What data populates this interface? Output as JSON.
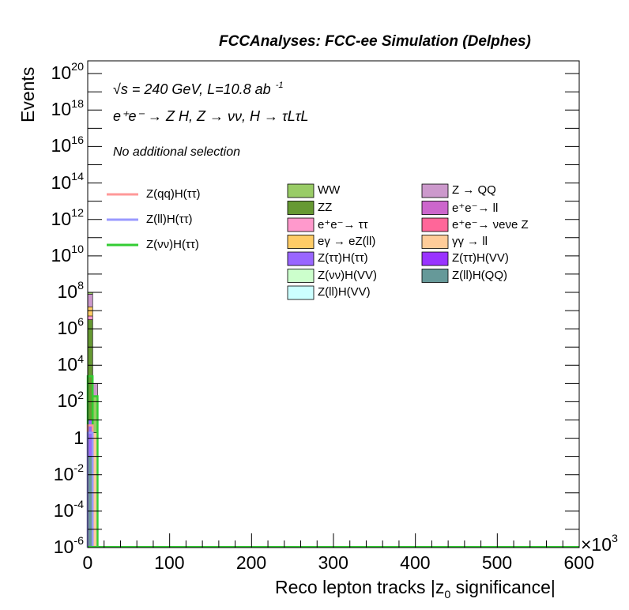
{
  "header": {
    "title": "FCCAnalyses: FCC-ee Simulation (Delphes)"
  },
  "annotations": {
    "energy_line": "√s = 240 GeV, L=10.8 ab",
    "energy_exp": "-1",
    "process_line": "e⁺e⁻ → Z H, Z → νν, H → τLτL",
    "selection": "No additional selection"
  },
  "chart_data": {
    "type": "histogram",
    "xlabel": "Reco lepton tracks |z0 significance|",
    "xlabel_main": "Reco lepton tracks |z",
    "xlabel_sub": "0",
    "xlabel_tail": " significance|",
    "ylabel": "Events",
    "x_multiplier": "×10",
    "x_multiplier_exp": "3",
    "xlim": [
      0,
      600
    ],
    "ylim_log10": [
      -6,
      20.7
    ],
    "y_scale": "log",
    "x_ticks": [
      "0",
      "100",
      "200",
      "300",
      "400",
      "500",
      "600"
    ],
    "y_ticks": [
      {
        "base": "10",
        "exp": "-6",
        "log": -6
      },
      {
        "base": "10",
        "exp": "-4",
        "log": -4
      },
      {
        "base": "10",
        "exp": "-2",
        "log": -2
      },
      {
        "base": "1",
        "exp": "",
        "log": 0
      },
      {
        "base": "10",
        "exp": "2",
        "log": 2
      },
      {
        "base": "10",
        "exp": "4",
        "log": 4
      },
      {
        "base": "10",
        "exp": "6",
        "log": 6
      },
      {
        "base": "10",
        "exp": "8",
        "log": 8
      },
      {
        "base": "10",
        "exp": "10",
        "log": 10
      },
      {
        "base": "10",
        "exp": "12",
        "log": 12
      },
      {
        "base": "10",
        "exp": "14",
        "log": 14
      },
      {
        "base": "10",
        "exp": "16",
        "log": 16
      },
      {
        "base": "10",
        "exp": "18",
        "log": 18
      },
      {
        "base": "10",
        "exp": "20",
        "log": 20
      }
    ],
    "signals": [
      {
        "name": "Z(qq)H(ττ)",
        "color": "#ff9999"
      },
      {
        "name": "Z(ll)H(ττ)",
        "color": "#9999ff"
      },
      {
        "name": "Z(νν)H(ττ)",
        "color": "#33cc33"
      }
    ],
    "backgrounds": [
      {
        "name": "WW",
        "color": "#99cc66"
      },
      {
        "name": "ZZ",
        "color": "#669933"
      },
      {
        "name": "e⁺e⁻→ ττ",
        "color": "#ff99cc"
      },
      {
        "name": "eγ → eZ(ll)",
        "color": "#ffcc66"
      },
      {
        "name": "Z(ττ)H(ττ)",
        "color": "#9966ff"
      },
      {
        "name": "Z(νν)H(VV)",
        "color": "#ccffcc"
      },
      {
        "name": "Z(ll)H(VV)",
        "color": "#ccffff"
      },
      {
        "name": "Z → QQ",
        "color": "#cc99cc"
      },
      {
        "name": "e⁺e⁻→ ll",
        "color": "#cc66cc"
      },
      {
        "name": "e⁺e⁻→ νeνe Z",
        "color": "#ff6699"
      },
      {
        "name": "γγ → ll",
        "color": "#ffcc99"
      },
      {
        "name": "Z(ττ)H(VV)",
        "color": "#9933ff"
      },
      {
        "name": "Z(ll)H(QQ)",
        "color": "#669999"
      }
    ],
    "stack_bins": [
      {
        "x_low": 0,
        "x_high": 6,
        "layers": [
          {
            "name": "WW",
            "log_top": 8
          },
          {
            "name": "ZZ",
            "log_top": 6.5
          },
          {
            "name": "e⁺e⁻→ ττ",
            "log_top": 6.7
          },
          {
            "name": "Z → QQ",
            "log_top": 7.9
          },
          {
            "name": "eγ → eZ(ll)",
            "log_top": 7.2
          },
          {
            "name": "Z(ττ)H(ττ)",
            "log_top": 1
          },
          {
            "name": "Z(ll)H(QQ)",
            "log_top": -1
          }
        ],
        "total_log": 8
      },
      {
        "x_low": 6,
        "x_high": 12,
        "layers": [
          {
            "name": "Z → QQ",
            "log_top": 3
          },
          {
            "name": "WW",
            "log_top": 2.3
          },
          {
            "name": "γγ → ll",
            "log_top": 0.3
          }
        ],
        "total_log": 3
      }
    ],
    "signal_bins": [
      {
        "name": "Z(νν)H(ττ)",
        "x_low": 0,
        "x_high": 6,
        "log": 3.4
      },
      {
        "name": "Z(νν)H(ττ)",
        "x_low": 6,
        "x_high": 12,
        "log": 2.3
      },
      {
        "name": "Z(qq)H(ττ)",
        "x_low": 0,
        "x_high": 6,
        "log": 0.7
      },
      {
        "name": "Z(ll)H(ττ)",
        "x_low": 0,
        "x_high": 6,
        "log": 0.3
      }
    ]
  }
}
